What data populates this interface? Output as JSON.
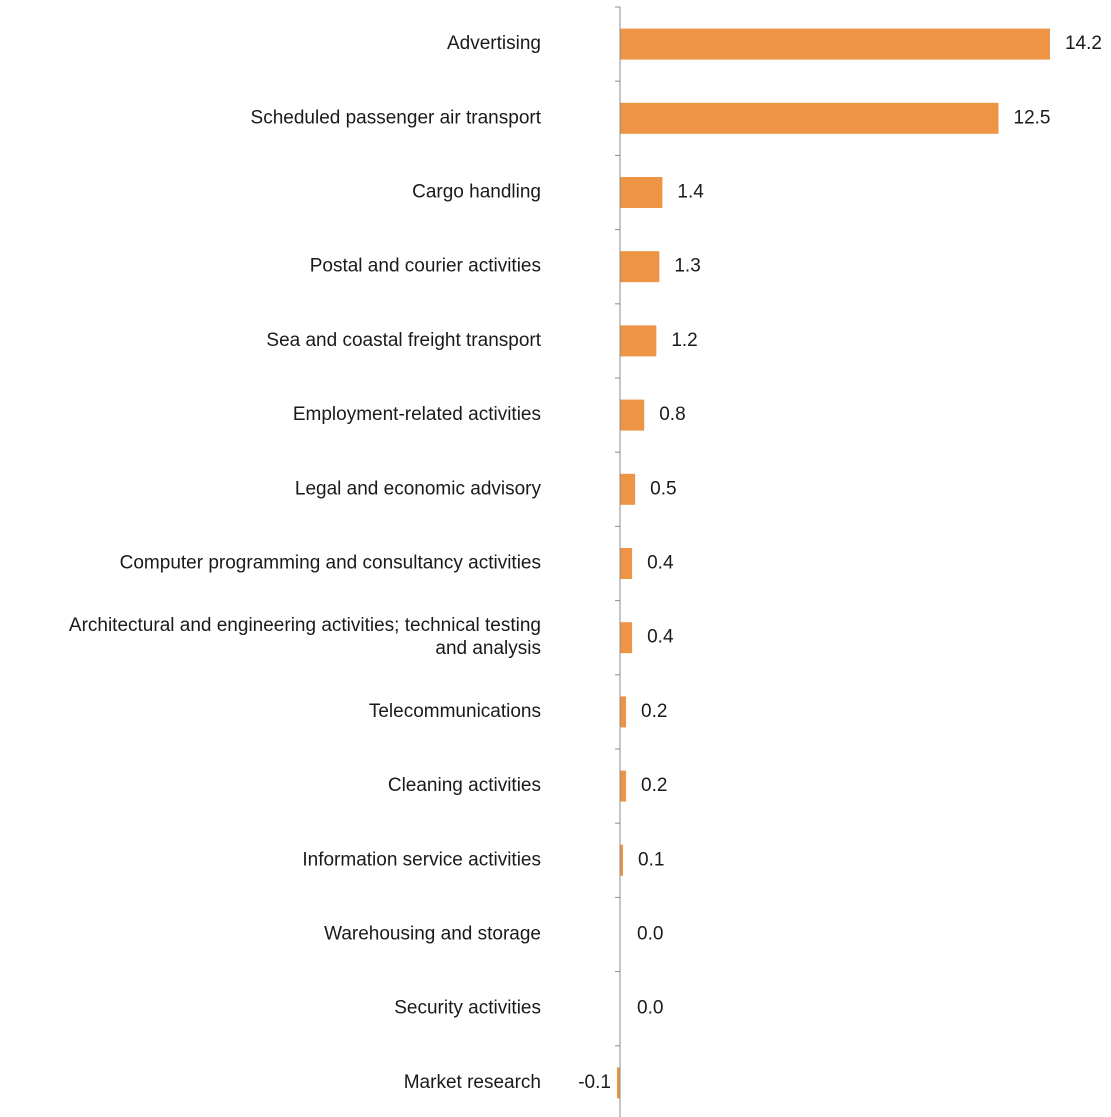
{
  "chart_data": {
    "type": "bar",
    "orientation": "horizontal",
    "categories": [
      "Advertising",
      "Scheduled passenger air transport",
      "Cargo handling",
      "Postal and courier activities",
      "Sea and coastal freight transport",
      "Employment-related activities",
      "Legal and economic advisory",
      "Computer programming and consultancy activities",
      "Architectural and engineering activities; technical testing and analysis",
      "Telecommunications",
      "Cleaning activities",
      "Information service activities",
      "Warehousing and storage",
      "Security activities",
      "Market research"
    ],
    "series": [
      {
        "values": [
          14.2,
          12.5,
          1.4,
          1.3,
          1.2,
          0.8,
          0.5,
          0.4,
          0.4,
          0.2,
          0.2,
          0.1,
          0.0,
          0.0,
          -0.1
        ],
        "color": "#ED9445"
      }
    ],
    "data_labels": [
      "14.2",
      "12.5",
      "1.4",
      "1.3",
      "1.2",
      "0.8",
      "0.5",
      "0.4",
      "0.4",
      "0.2",
      "0.2",
      "0.1",
      "0.0",
      "0.0",
      "-0.1"
    ],
    "title": "",
    "xlabel": "",
    "ylabel": "",
    "grid": false,
    "legend": "none"
  },
  "colors": {
    "bar": "#ED9445",
    "axis": "#8c8c8c",
    "text": "#1a1a1a"
  }
}
